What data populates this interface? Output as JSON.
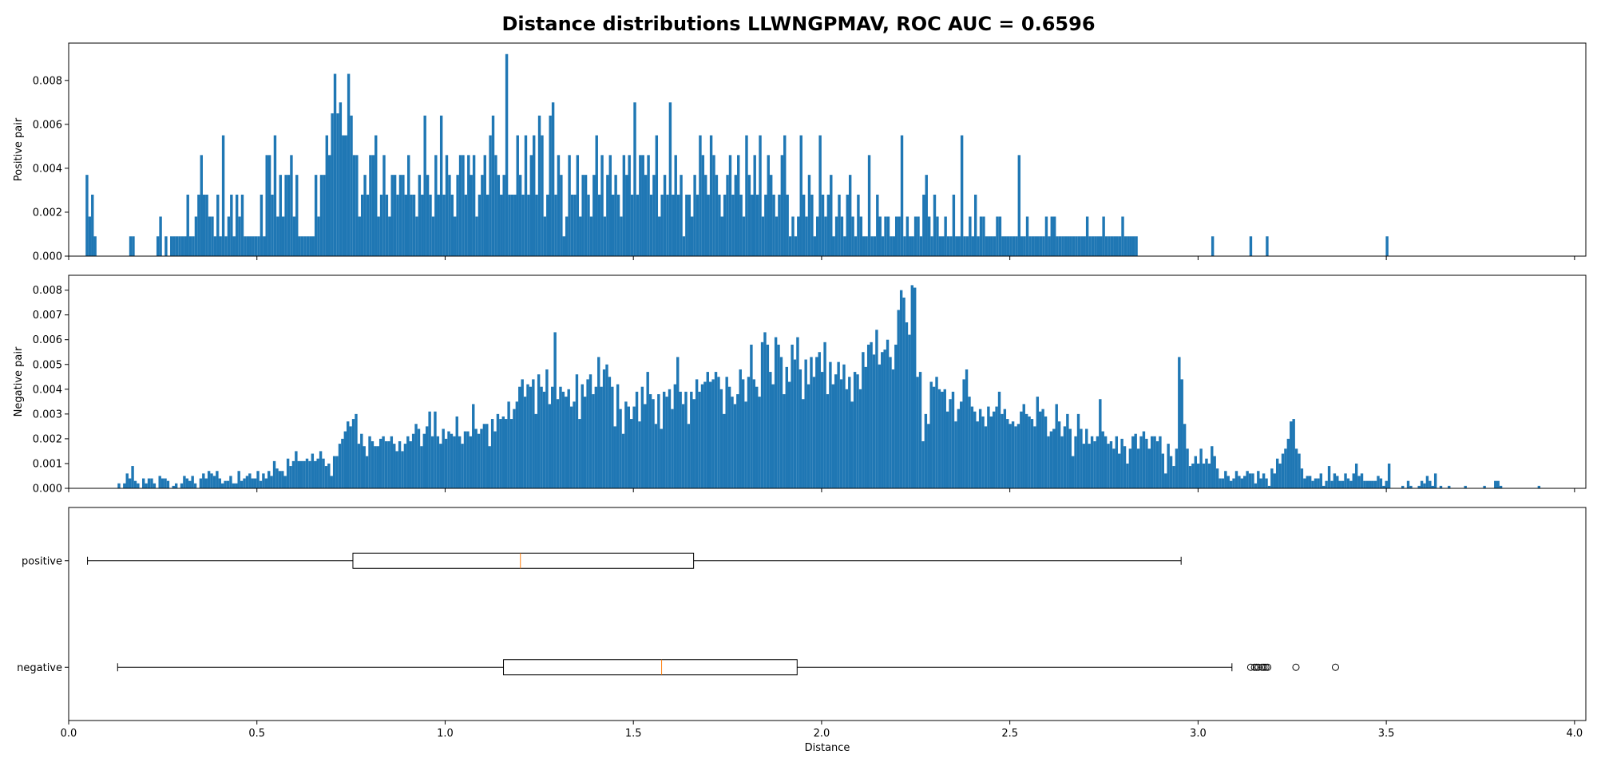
{
  "figure_title": "Distance distributions LLWNGPMAV, ROC AUC = 0.6596",
  "colors": {
    "bars": "#1f77b4",
    "median": "#ff7f0e",
    "axes": "#000000",
    "background": "#ffffff"
  },
  "chart_data": [
    {
      "type": "histogram",
      "ylabel": "Positive pair",
      "xlim": [
        0.0,
        4.03
      ],
      "ylim": [
        0.0,
        0.0097
      ],
      "yticks": [
        "0.000",
        "0.002",
        "0.004",
        "0.006",
        "0.008"
      ],
      "bin_start": 0.045,
      "bin_width": 0.00724,
      "values": [
        0.0037,
        0.0018,
        0.0028,
        0.0009,
        0,
        0,
        0,
        0,
        0,
        0,
        0,
        0,
        0,
        0,
        0,
        0,
        0.0009,
        0.0009,
        0,
        0,
        0,
        0,
        0,
        0,
        0,
        0,
        0.0009,
        0.0018,
        0,
        0.0009,
        0,
        0.0009,
        0.0009,
        0.0009,
        0.0009,
        0.0009,
        0.0009,
        0.0028,
        0.0009,
        0.0009,
        0.0018,
        0.0028,
        0.0046,
        0.0028,
        0.0028,
        0.0018,
        0.0018,
        0.0009,
        0.0028,
        0.0009,
        0.0055,
        0.0009,
        0.0018,
        0.0028,
        0.0009,
        0.0028,
        0.0018,
        0.0028,
        0.0009,
        0.0009,
        0.0009,
        0.0009,
        0.0009,
        0.0009,
        0.0028,
        0.0009,
        0.0046,
        0.0046,
        0.0028,
        0.0055,
        0.0018,
        0.0037,
        0.0018,
        0.0037,
        0.0037,
        0.0046,
        0.0018,
        0.0037,
        0.0009,
        0.0009,
        0.0009,
        0.0009,
        0.0009,
        0.0009,
        0.0037,
        0.0018,
        0.0037,
        0.0037,
        0.0055,
        0.0046,
        0.0065,
        0.0083,
        0.0065,
        0.007,
        0.0055,
        0.0055,
        0.0083,
        0.0064,
        0.0046,
        0.0046,
        0.0018,
        0.0028,
        0.0037,
        0.0028,
        0.0046,
        0.0046,
        0.0055,
        0.0018,
        0.0028,
        0.0046,
        0.0028,
        0.0018,
        0.0037,
        0.0037,
        0.0028,
        0.0037,
        0.0037,
        0.0028,
        0.0046,
        0.0028,
        0.0028,
        0.0018,
        0.0037,
        0.0028,
        0.0064,
        0.0037,
        0.0028,
        0.0018,
        0.0046,
        0.0028,
        0.0064,
        0.0028,
        0.0046,
        0.0037,
        0.0028,
        0.0018,
        0.0037,
        0.0046,
        0.0046,
        0.0028,
        0.0046,
        0.0037,
        0.0046,
        0.0018,
        0.0028,
        0.0037,
        0.0046,
        0.0028,
        0.0055,
        0.0064,
        0.0046,
        0.0037,
        0.0028,
        0.0037,
        0.0092,
        0.0028,
        0.0028,
        0.0028,
        0.0055,
        0.0037,
        0.0028,
        0.0055,
        0.0028,
        0.0046,
        0.0055,
        0.0028,
        0.0064,
        0.0055,
        0.0018,
        0.0028,
        0.0064,
        0.007,
        0.0028,
        0.0046,
        0.0037,
        0.0009,
        0.0018,
        0.0046,
        0.0028,
        0.0028,
        0.0046,
        0.0018,
        0.0037,
        0.0037,
        0.0028,
        0.0018,
        0.0037,
        0.0055,
        0.0028,
        0.0046,
        0.0018,
        0.0037,
        0.0046,
        0.0028,
        0.0037,
        0.0028,
        0.0018,
        0.0046,
        0.0037,
        0.0046,
        0.0028,
        0.007,
        0.0028,
        0.0046,
        0.0046,
        0.0037,
        0.0046,
        0.0028,
        0.0037,
        0.0055,
        0.0018,
        0.0028,
        0.0037,
        0.0028,
        0.007,
        0.0028,
        0.0046,
        0.0028,
        0.0037,
        0.0009,
        0.0028,
        0.0028,
        0.0018,
        0.0037,
        0.0028,
        0.0055,
        0.0046,
        0.0037,
        0.0028,
        0.0055,
        0.0046,
        0.0037,
        0.0028,
        0.0018,
        0.0028,
        0.0037,
        0.0046,
        0.0028,
        0.0037,
        0.0046,
        0.0028,
        0.0018,
        0.0055,
        0.0037,
        0.0028,
        0.0046,
        0.0028,
        0.0055,
        0.0018,
        0.0028,
        0.0046,
        0.0037,
        0.0028,
        0.0018,
        0.0028,
        0.0046,
        0.0055,
        0.0028,
        0.0009,
        0.0018,
        0.0009,
        0.0018,
        0.0055,
        0.0028,
        0.0018,
        0.0037,
        0.0028,
        0.0009,
        0.0018,
        0.0055,
        0.0028,
        0.0018,
        0.0028,
        0.0037,
        0.0009,
        0.0018,
        0.0028,
        0.0018,
        0.0009,
        0.0028,
        0.0037,
        0.0018,
        0.0009,
        0.0028,
        0.0018,
        0.0009,
        0.0009,
        0.0046,
        0.0009,
        0.0009,
        0.0028,
        0.0018,
        0.0009,
        0.0018,
        0.0018,
        0.0009,
        0.0009,
        0.0018,
        0.0018,
        0.0055,
        0.0009,
        0.0018,
        0.0009,
        0.0009,
        0.0018,
        0.0018,
        0.0009,
        0.0028,
        0.0037,
        0.0018,
        0.0009,
        0.0028,
        0.0018,
        0.0009,
        0.0009,
        0.0018,
        0.0009,
        0.0009,
        0.0028,
        0.0009,
        0.0009,
        0.0055,
        0.0009,
        0.0009,
        0.0018,
        0.0009,
        0.0028,
        0.0009,
        0.0018,
        0.0018,
        0.0009,
        0.0009,
        0.0009,
        0.0009,
        0.0018,
        0.0018,
        0.0009,
        0.0009,
        0.0009,
        0.0009,
        0.0009,
        0.0009,
        0.0046,
        0.0009,
        0.0009,
        0.0018,
        0.0009,
        0.0009,
        0.0009,
        0.0009,
        0.0009,
        0.0009,
        0.0018,
        0.0009,
        0.0018,
        0.0018,
        0.0009,
        0.0009,
        0.0009,
        0.0009,
        0.0009,
        0.0009,
        0.0009,
        0.0009,
        0.0009,
        0.0009,
        0.0009,
        0.0018,
        0.0009,
        0.0009,
        0.0009,
        0.0009,
        0.0009,
        0.0018,
        0.0009,
        0.0009,
        0.0009,
        0.0009,
        0.0009,
        0.0009,
        0.0018,
        0.0009,
        0.0009,
        0.0009,
        0.0009,
        0.0009,
        0,
        0,
        0,
        0,
        0,
        0,
        0,
        0,
        0,
        0,
        0,
        0,
        0,
        0,
        0,
        0,
        0,
        0,
        0,
        0,
        0,
        0,
        0,
        0,
        0,
        0,
        0,
        0.0009,
        0,
        0,
        0,
        0,
        0,
        0,
        0,
        0,
        0,
        0,
        0,
        0,
        0,
        0.0009,
        0,
        0,
        0,
        0,
        0,
        0.0009,
        0,
        0,
        0,
        0,
        0,
        0,
        0,
        0,
        0,
        0,
        0,
        0,
        0,
        0,
        0,
        0,
        0,
        0,
        0,
        0,
        0,
        0,
        0,
        0,
        0,
        0,
        0,
        0,
        0,
        0,
        0,
        0,
        0,
        0,
        0,
        0,
        0,
        0,
        0,
        0,
        0,
        0,
        0,
        0.0009
      ],
      "xticks": [
        "0.0",
        "0.5",
        "1.0",
        "1.5",
        "2.0",
        "2.5",
        "3.0",
        "3.5",
        "4.0"
      ],
      "show_xtick_labels": false
    },
    {
      "type": "histogram",
      "ylabel": "Negative pair",
      "xlim": [
        0.0,
        4.03
      ],
      "ylim": [
        0.0,
        0.0086
      ],
      "yticks": [
        "0.000",
        "0.001",
        "0.002",
        "0.003",
        "0.004",
        "0.005",
        "0.006",
        "0.007",
        "0.008"
      ],
      "bin_start": 0.13,
      "bin_width": 0.00724,
      "values": [
        0.0002,
        0,
        0.0002,
        0.0006,
        0.0004,
        0.0009,
        0.0003,
        0.0002,
        0,
        0.0004,
        0.0002,
        0.0004,
        0.0004,
        0.0002,
        0,
        0.0005,
        0.0004,
        0.0004,
        0.0003,
        0,
        0.0001,
        0.0002,
        0,
        0.0002,
        0.0005,
        0.0004,
        0.0003,
        0.0005,
        0.0002,
        0,
        0.0004,
        0.0006,
        0.0004,
        0.0007,
        0.0006,
        0.0005,
        0.0007,
        0.0004,
        0.0002,
        0.0003,
        0.0003,
        0.0005,
        0.0002,
        0.0002,
        0.0007,
        0.0003,
        0.0004,
        0.0005,
        0.0006,
        0.0004,
        0.0004,
        0.0007,
        0.0003,
        0.0006,
        0.0004,
        0.0007,
        0.0005,
        0.0011,
        0.0008,
        0.0007,
        0.0007,
        0.0005,
        0.0012,
        0.0009,
        0.0011,
        0.0015,
        0.0011,
        0.0011,
        0.0011,
        0.0012,
        0.0011,
        0.0014,
        0.0011,
        0.0012,
        0.0015,
        0.0012,
        0.0009,
        0.001,
        0.0005,
        0.0013,
        0.0013,
        0.0018,
        0.002,
        0.0023,
        0.0027,
        0.0025,
        0.0028,
        0.003,
        0.0018,
        0.0022,
        0.0017,
        0.0013,
        0.0021,
        0.0019,
        0.0017,
        0.0017,
        0.002,
        0.0021,
        0.0019,
        0.0019,
        0.0021,
        0.0018,
        0.0015,
        0.0019,
        0.0015,
        0.0018,
        0.0021,
        0.0019,
        0.0022,
        0.0026,
        0.0024,
        0.0017,
        0.0022,
        0.0025,
        0.0031,
        0.0021,
        0.0031,
        0.0021,
        0.0018,
        0.0024,
        0.002,
        0.0023,
        0.0022,
        0.0021,
        0.0029,
        0.0021,
        0.0018,
        0.0023,
        0.0023,
        0.0021,
        0.0034,
        0.0024,
        0.0022,
        0.0024,
        0.0026,
        0.0026,
        0.0017,
        0.0028,
        0.0023,
        0.003,
        0.0028,
        0.0029,
        0.0028,
        0.0035,
        0.0028,
        0.0032,
        0.0035,
        0.0041,
        0.0044,
        0.0037,
        0.0042,
        0.0041,
        0.0044,
        0.003,
        0.0046,
        0.0041,
        0.0039,
        0.0048,
        0.0034,
        0.0041,
        0.0063,
        0.0036,
        0.0041,
        0.0039,
        0.0037,
        0.004,
        0.0033,
        0.0035,
        0.0046,
        0.0028,
        0.0042,
        0.0037,
        0.0044,
        0.0046,
        0.0038,
        0.0041,
        0.0053,
        0.0041,
        0.0048,
        0.005,
        0.0045,
        0.0041,
        0.0025,
        0.0042,
        0.0032,
        0.0022,
        0.0035,
        0.0033,
        0.0028,
        0.0033,
        0.0039,
        0.0027,
        0.0041,
        0.0034,
        0.0047,
        0.0038,
        0.0036,
        0.0026,
        0.0038,
        0.0024,
        0.0039,
        0.0037,
        0.004,
        0.0032,
        0.0042,
        0.0053,
        0.0039,
        0.0034,
        0.0039,
        0.0026,
        0.0039,
        0.0036,
        0.0044,
        0.0039,
        0.0042,
        0.0043,
        0.0047,
        0.0043,
        0.0044,
        0.0047,
        0.0045,
        0.004,
        0.003,
        0.0045,
        0.0041,
        0.0037,
        0.0034,
        0.0038,
        0.0048,
        0.0044,
        0.0035,
        0.0045,
        0.0058,
        0.0044,
        0.0041,
        0.0037,
        0.0059,
        0.0063,
        0.0058,
        0.0047,
        0.0042,
        0.0061,
        0.0058,
        0.0053,
        0.0038,
        0.0049,
        0.0043,
        0.0058,
        0.0052,
        0.0061,
        0.0048,
        0.0036,
        0.0052,
        0.0042,
        0.0053,
        0.0045,
        0.0053,
        0.0055,
        0.0047,
        0.0059,
        0.0038,
        0.0051,
        0.0042,
        0.0046,
        0.0051,
        0.0044,
        0.005,
        0.004,
        0.0045,
        0.0035,
        0.0047,
        0.0046,
        0.004,
        0.0055,
        0.0049,
        0.0058,
        0.0059,
        0.0054,
        0.0064,
        0.005,
        0.0055,
        0.0056,
        0.006,
        0.0053,
        0.0048,
        0.0058,
        0.0072,
        0.008,
        0.0077,
        0.0067,
        0.0062,
        0.0082,
        0.0081,
        0.0045,
        0.0047,
        0.0019,
        0.003,
        0.0026,
        0.0043,
        0.0041,
        0.0045,
        0.004,
        0.0039,
        0.004,
        0.0031,
        0.0036,
        0.0039,
        0.0027,
        0.0032,
        0.0035,
        0.0044,
        0.0048,
        0.0037,
        0.0033,
        0.0031,
        0.0027,
        0.0032,
        0.0029,
        0.0025,
        0.0033,
        0.0029,
        0.0031,
        0.0033,
        0.0039,
        0.003,
        0.0032,
        0.0028,
        0.0026,
        0.0027,
        0.0025,
        0.0026,
        0.0031,
        0.0034,
        0.003,
        0.0029,
        0.0028,
        0.0025,
        0.0037,
        0.0031,
        0.0032,
        0.0029,
        0.0021,
        0.0023,
        0.0024,
        0.0034,
        0.0027,
        0.0021,
        0.0025,
        0.003,
        0.0024,
        0.0013,
        0.0021,
        0.003,
        0.0024,
        0.0018,
        0.0024,
        0.0018,
        0.0021,
        0.0019,
        0.0021,
        0.0036,
        0.0023,
        0.0021,
        0.0018,
        0.0019,
        0.0016,
        0.0021,
        0.0014,
        0.002,
        0.0017,
        0.001,
        0.0016,
        0.0021,
        0.0022,
        0.0016,
        0.0021,
        0.0023,
        0.002,
        0.0016,
        0.0021,
        0.0021,
        0.0019,
        0.0021,
        0.0014,
        0.0006,
        0.0018,
        0.0013,
        0.0009,
        0.0016,
        0.0053,
        0.0044,
        0.0026,
        0.0016,
        0.0009,
        0.001,
        0.0013,
        0.001,
        0.0016,
        0.001,
        0.0012,
        0.001,
        0.0017,
        0.0013,
        0.0008,
        0.0004,
        0.0004,
        0.0007,
        0.0005,
        0.0003,
        0.0004,
        0.0007,
        0.0005,
        0.0004,
        0.0005,
        0.0007,
        0.0006,
        0.0006,
        0.0002,
        0.0007,
        0.0004,
        0.0006,
        0.0004,
        0.0001,
        0.0008,
        0.0006,
        0.0012,
        0.001,
        0.0014,
        0.0016,
        0.002,
        0.0027,
        0.0028,
        0.0016,
        0.0014,
        0.0008,
        0.0004,
        0.0005,
        0.0005,
        0.0003,
        0.0004,
        0.0004,
        0.0006,
        0.0001,
        0.0003,
        0.0009,
        0.0003,
        0.0006,
        0.0005,
        0.0003,
        0.0003,
        0.0006,
        0.0004,
        0.0003,
        0.0006,
        0.001,
        0.0005,
        0.0006,
        0.0003,
        0.0003,
        0.0003,
        0.0003,
        0.0003,
        0.0005,
        0.0004,
        0.0001,
        0.0003,
        0.001,
        0,
        0,
        0,
        0,
        0.0001,
        0,
        0.0003,
        0.0001,
        0,
        0,
        0.0001,
        0.0003,
        0.0002,
        0.0005,
        0.0003,
        0.0001,
        0.0006,
        0,
        0.0001,
        0,
        0,
        0.0001,
        0,
        0,
        0,
        0,
        0,
        0.0001,
        0,
        0,
        0,
        0,
        0,
        0,
        0.0001,
        0,
        0,
        0,
        0.0003,
        0.0003,
        0.0001,
        0,
        0,
        0,
        0,
        0,
        0,
        0,
        0,
        0,
        0,
        0,
        0,
        0,
        0.0001,
        0,
        0,
        0,
        0,
        0,
        0,
        0,
        0,
        0,
        0,
        0,
        0,
        0,
        0,
        0,
        0,
        0,
        0,
        0,
        0,
        0,
        0,
        0,
        0,
        0,
        0,
        0,
        0,
        0,
        0.0001
      ],
      "xticks": [
        "0.0",
        "0.5",
        "1.0",
        "1.5",
        "2.0",
        "2.5",
        "3.0",
        "3.5",
        "4.0"
      ],
      "show_xtick_labels": false
    },
    {
      "type": "boxplot",
      "orientation": "horizontal",
      "xlabel": "Distance",
      "xlim": [
        0.0,
        4.03
      ],
      "xticks": [
        "0.0",
        "0.5",
        "1.0",
        "1.5",
        "2.0",
        "2.5",
        "3.0",
        "3.5",
        "4.0"
      ],
      "boxes": [
        {
          "label": "positive",
          "whislo": 0.05,
          "q1": 0.755,
          "med": 1.2,
          "q3": 1.66,
          "whishi": 2.955,
          "fliers": []
        },
        {
          "label": "negative",
          "whislo": 0.13,
          "q1": 1.155,
          "med": 1.575,
          "q3": 1.935,
          "whishi": 3.09,
          "fliers": [
            3.14,
            3.15,
            3.155,
            3.16,
            3.17,
            3.175,
            3.18,
            3.185,
            3.26,
            3.365
          ]
        }
      ]
    }
  ]
}
